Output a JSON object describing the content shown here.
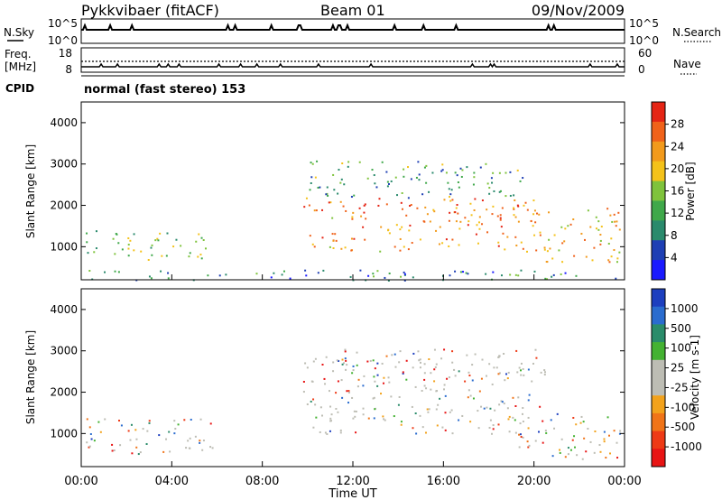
{
  "header": {
    "station": "Pykkvibaer (fitACF)",
    "beam": "Beam 01",
    "date": "09/Nov/2009"
  },
  "aux": {
    "nsky_label": "N.Sky",
    "nsky_ticks": [
      "10^5",
      "10^0"
    ],
    "nsearch_label": "N.Search",
    "nsearch_ticks": [
      "10^5",
      "10^0"
    ],
    "freq_label_1": "Freq.",
    "freq_label_2": "[MHz]",
    "freq_ticks": [
      "18",
      "8"
    ],
    "nave_label": "Nave",
    "nave_ticks": [
      "60",
      "0"
    ],
    "cpid_label": "CPID",
    "cpid_text": "normal (fast stereo) 153"
  },
  "xaxis": {
    "label": "Time UT",
    "ticks": [
      "00:00",
      "04:00",
      "08:00",
      "12:00",
      "16:00",
      "20:00",
      "00:00"
    ]
  },
  "colors": {
    "power": [
      "#1a1aff",
      "#1e3fb4",
      "#2a8a6c",
      "#3fa84a",
      "#7fc33c",
      "#f4c21a",
      "#f29a1c",
      "#f0621a",
      "#e52515"
    ],
    "velocity": [
      "#1d3fbf",
      "#2a6ccf",
      "#2a8c6a",
      "#44b232",
      "#bdbdb4",
      "#bdbdb4",
      "#f2a21c",
      "#f07418",
      "#ee3a16",
      "#e81414"
    ]
  },
  "chart_data": [
    {
      "type": "heatmap",
      "name": "power",
      "ylabel": "Slant Range [km]",
      "xlabel": "",
      "ylim": [
        200,
        4500
      ],
      "xlim": [
        0,
        24
      ],
      "yticks": [
        "1000",
        "2000",
        "3000",
        "4000"
      ],
      "colorbar_label": "Power [dB]",
      "colorbar_ticks": [
        "4",
        "8",
        "12",
        "16",
        "20",
        "24",
        "28"
      ],
      "features": [
        {
          "t0": 0.2,
          "t1": 5.8,
          "r0": 700,
          "r1": 1400,
          "level": 0.45
        },
        {
          "t0": 9.8,
          "t1": 20.5,
          "r0": 900,
          "r1": 2200,
          "level": 0.8
        },
        {
          "t0": 10.0,
          "t1": 19.5,
          "r0": 2200,
          "r1": 3100,
          "level": 0.35
        },
        {
          "t0": 20.5,
          "t1": 23.8,
          "r0": 600,
          "r1": 2000,
          "level": 0.7
        },
        {
          "t0": 0.0,
          "t1": 24.0,
          "r0": 200,
          "r1": 450,
          "level": 0.25
        }
      ]
    },
    {
      "type": "heatmap",
      "name": "velocity",
      "ylabel": "Slant Range [km]",
      "xlabel": "Time UT",
      "ylim": [
        200,
        4500
      ],
      "xlim": [
        0,
        24
      ],
      "yticks": [
        "1000",
        "2000",
        "3000",
        "4000"
      ],
      "colorbar_label": "Velocity [m s-1]",
      "colorbar_ticks": [
        "1000",
        "500",
        "100",
        "25",
        "-25",
        "-100",
        "-500",
        "-1000"
      ],
      "features": [
        {
          "t0": 0.2,
          "t1": 5.8,
          "r0": 500,
          "r1": 1400,
          "level": 0.4
        },
        {
          "t0": 9.8,
          "t1": 20.5,
          "r0": 1000,
          "r1": 3100,
          "level": 0.5
        },
        {
          "t0": 19.0,
          "t1": 23.8,
          "r0": 400,
          "r1": 1500,
          "level": 0.3
        }
      ]
    }
  ]
}
